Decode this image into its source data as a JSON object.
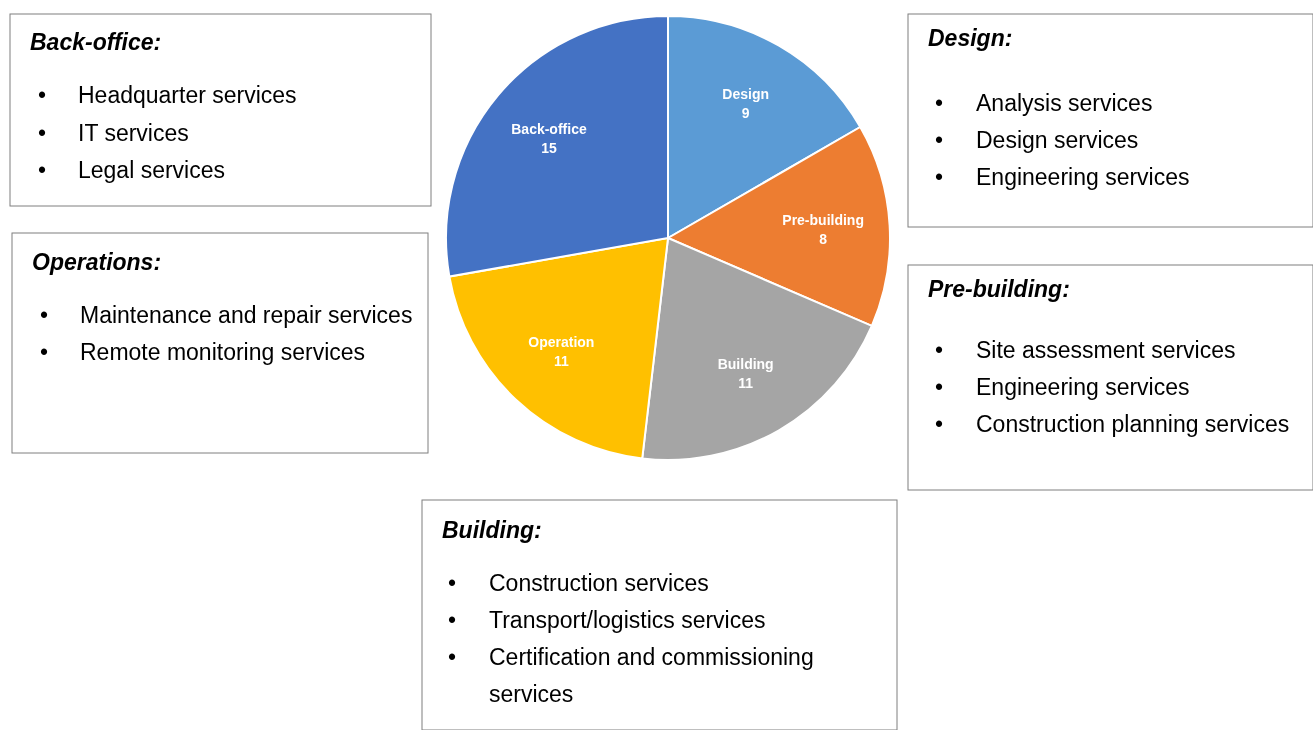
{
  "chart_data": {
    "type": "pie",
    "categories": [
      "Design",
      "Pre-building",
      "Building",
      "Operation",
      "Back-office"
    ],
    "values": [
      9,
      8,
      11,
      11,
      15
    ],
    "colors": [
      "#5b9bd5",
      "#ed7d31",
      "#a5a5a5",
      "#ffc000",
      "#4472c4"
    ],
    "data_labels": true,
    "annotations": [
      "Back-office:\n• Headquarter services\n• IT services\n• Legal services",
      "Design:\n• Analysis services\n• Design services\n• Engineering services",
      "Operations:\n• Maintenance and repair services\n• Remote monitoring services",
      "Pre-building:\n• Site assessment services\n• Engineering services\n• Construction planning services",
      "Building:\n• Construction services\n• Transport/logistics services\n• Certification and commissioning services"
    ]
  }
}
